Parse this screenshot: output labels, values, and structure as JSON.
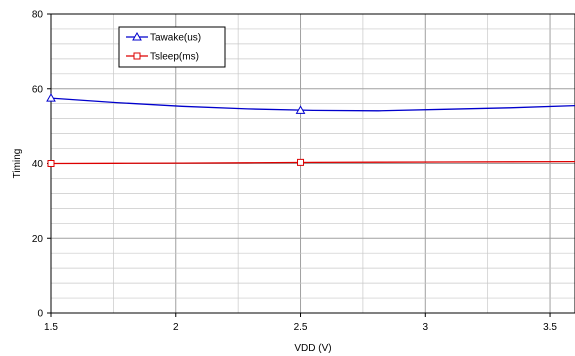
{
  "chart_data": {
    "type": "line",
    "title": "",
    "xlabel": "VDD (V)",
    "ylabel": "Timing",
    "xlim": [
      1.5,
      3.6
    ],
    "ylim": [
      0,
      80
    ],
    "x_ticks": [
      1.5,
      2,
      2.5,
      3,
      3.5
    ],
    "x_tick_labels": [
      "1.5",
      "2",
      "2.5",
      "3",
      "3.5"
    ],
    "y_ticks": [
      0,
      20,
      40,
      60,
      80
    ],
    "y_tick_labels": [
      "0",
      "20",
      "40",
      "60",
      "80"
    ],
    "x_minor_step": 0.25,
    "y_minor_step": 4,
    "grid": true,
    "legend_position": "top-left",
    "series": [
      {
        "name": "Tawake(us)",
        "color": "#0000cc",
        "marker": "triangle",
        "x": [
          1.5,
          2.5,
          3.6
        ],
        "y": [
          57.5,
          54.2,
          55.5
        ],
        "curve_y": [
          57.5,
          56.3,
          55.3,
          54.6,
          54.2,
          54.1,
          54.5,
          54.9,
          55.5
        ]
      },
      {
        "name": "Tsleep(ms)",
        "color": "#dd0000",
        "marker": "square",
        "x": [
          1.5,
          2.5,
          3.6
        ],
        "y": [
          40.0,
          40.3,
          40.5
        ],
        "curve_y": [
          40.0,
          40.05,
          40.1,
          40.2,
          40.3,
          40.35,
          40.4,
          40.45,
          40.5
        ]
      }
    ]
  }
}
